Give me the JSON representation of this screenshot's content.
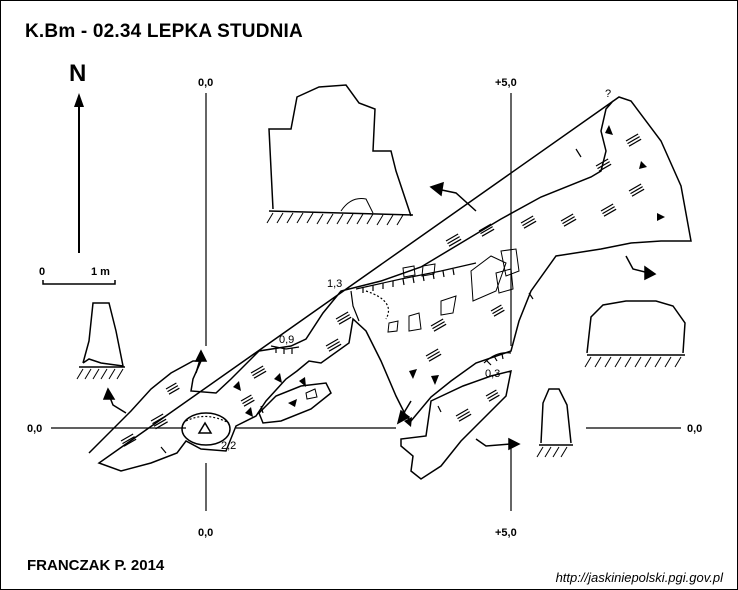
{
  "title": "K.Bm - 02.34  LEPKA STUDNIA",
  "author": "FRANCZAK P. 2014",
  "source": "http://jaskiniepolski.pgi.gov.pl",
  "north_label": "N",
  "scale": {
    "start": "0",
    "end": "1 m"
  },
  "grid_labels": {
    "top_left": "0,0",
    "top_right": "+5,0",
    "bottom_left": "0,0",
    "bottom_right": "+5,0",
    "left": "0,0",
    "right": "0,0"
  },
  "depth_labels": {
    "d1": "1,3",
    "d2": "0,9",
    "d3": "0,3",
    "d4": "2,2"
  },
  "unknown_mark": "?"
}
